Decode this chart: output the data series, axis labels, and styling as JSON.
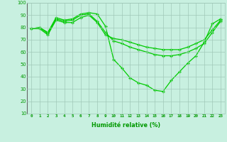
{
  "line1": {
    "x": [
      0,
      1,
      2,
      3,
      4,
      5,
      6,
      7,
      8,
      9,
      10,
      11,
      12,
      13,
      14,
      15,
      16,
      17,
      18,
      19,
      20,
      21,
      22,
      23
    ],
    "y": [
      79,
      80,
      76,
      88,
      86,
      87,
      91,
      92,
      91,
      81,
      54,
      47,
      39,
      35,
      33,
      29,
      28,
      37,
      44,
      51,
      57,
      68,
      83,
      87
    ],
    "color": "#00cc00",
    "marker": "+",
    "markersize": 3.5,
    "linewidth": 0.9
  },
  "line2": {
    "x": [
      0,
      1,
      2,
      3,
      4,
      5,
      6,
      7,
      8,
      9,
      10,
      11,
      12,
      13,
      14,
      15,
      16,
      17,
      18,
      19,
      20,
      21,
      22,
      23
    ],
    "y": [
      79,
      80,
      75,
      87,
      85,
      86,
      90,
      91,
      85,
      76,
      69,
      67,
      64,
      62,
      60,
      58,
      57,
      57,
      58,
      60,
      63,
      67,
      76,
      85
    ],
    "color": "#00cc00",
    "marker": "+",
    "markersize": 3.5,
    "linewidth": 0.9
  },
  "line3": {
    "x": [
      0,
      1,
      2,
      3,
      4,
      5,
      6,
      7,
      8,
      9,
      10,
      11,
      12,
      13,
      14,
      15,
      16,
      17,
      18,
      19,
      20,
      21,
      22,
      23
    ],
    "y": [
      79,
      79,
      74,
      86,
      84,
      84,
      88,
      90,
      84,
      74,
      71,
      70,
      68,
      66,
      64,
      63,
      62,
      62,
      62,
      64,
      67,
      70,
      78,
      86
    ],
    "color": "#00cc00",
    "marker": "+",
    "markersize": 3.5,
    "linewidth": 0.9
  },
  "xlabel": "Humidité relative (%)",
  "xlim": [
    -0.5,
    23.5
  ],
  "ylim": [
    10,
    100
  ],
  "yticks": [
    10,
    20,
    30,
    40,
    50,
    60,
    70,
    80,
    90,
    100
  ],
  "xticks": [
    0,
    1,
    2,
    3,
    4,
    5,
    6,
    7,
    8,
    9,
    10,
    11,
    12,
    13,
    14,
    15,
    16,
    17,
    18,
    19,
    20,
    21,
    22,
    23
  ],
  "background_color": "#c8f0e0",
  "grid_color": "#a0c8b8",
  "label_color": "#009900"
}
